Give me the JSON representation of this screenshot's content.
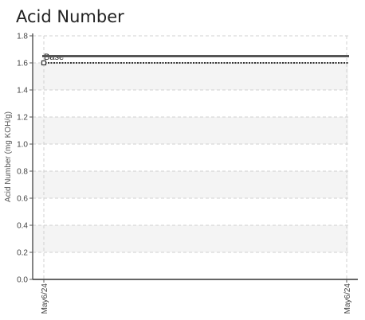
{
  "chart_data": {
    "type": "line",
    "title": "Acid Number",
    "xlabel": "",
    "ylabel": "Acid Number (mg KOH/g)",
    "ylim": [
      0,
      1.8
    ],
    "y_ticks": [
      "0.0",
      "0.2",
      "0.4",
      "0.6",
      "0.8",
      "1.0",
      "1.2",
      "1.4",
      "1.6",
      "1.8"
    ],
    "x_tick_labels": [
      "May6/24",
      "May6/24"
    ],
    "grid": true,
    "series": [
      {
        "values": [
          1.6
        ],
        "x": [
          "May6/24"
        ],
        "color": "#333333",
        "marker": "square"
      }
    ],
    "reference_lines": [
      {
        "label": "Base",
        "value": 1.6,
        "color": "#333333",
        "style": "dotted"
      },
      {
        "label": "",
        "value": 1.65,
        "color": "#555555",
        "style": "solid"
      }
    ]
  }
}
